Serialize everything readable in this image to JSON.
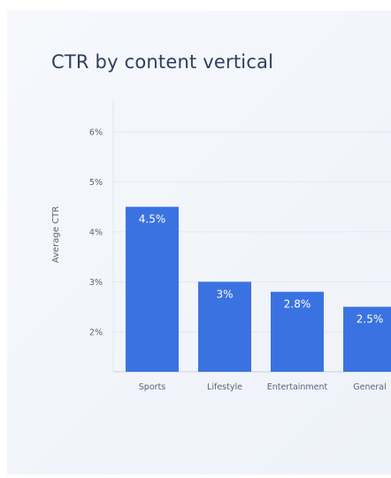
{
  "chart_data": {
    "type": "bar",
    "title": "CTR by content vertical",
    "xlabel": "",
    "ylabel": "Average CTR",
    "categories": [
      "Sports",
      "Lifestyle",
      "Entertainment",
      "General"
    ],
    "values": [
      4.5,
      3.0,
      2.8,
      2.5
    ],
    "value_labels": [
      "4.5%",
      "3%",
      "2.8%",
      "2.5%"
    ],
    "y_ticks": [
      2,
      3,
      4,
      5,
      6
    ],
    "y_tick_labels": [
      "2%",
      "3%",
      "4%",
      "5%",
      "6%"
    ],
    "ylim": [
      1.2,
      6.6
    ],
    "grid": true,
    "bar_color": "#3a73e1"
  }
}
